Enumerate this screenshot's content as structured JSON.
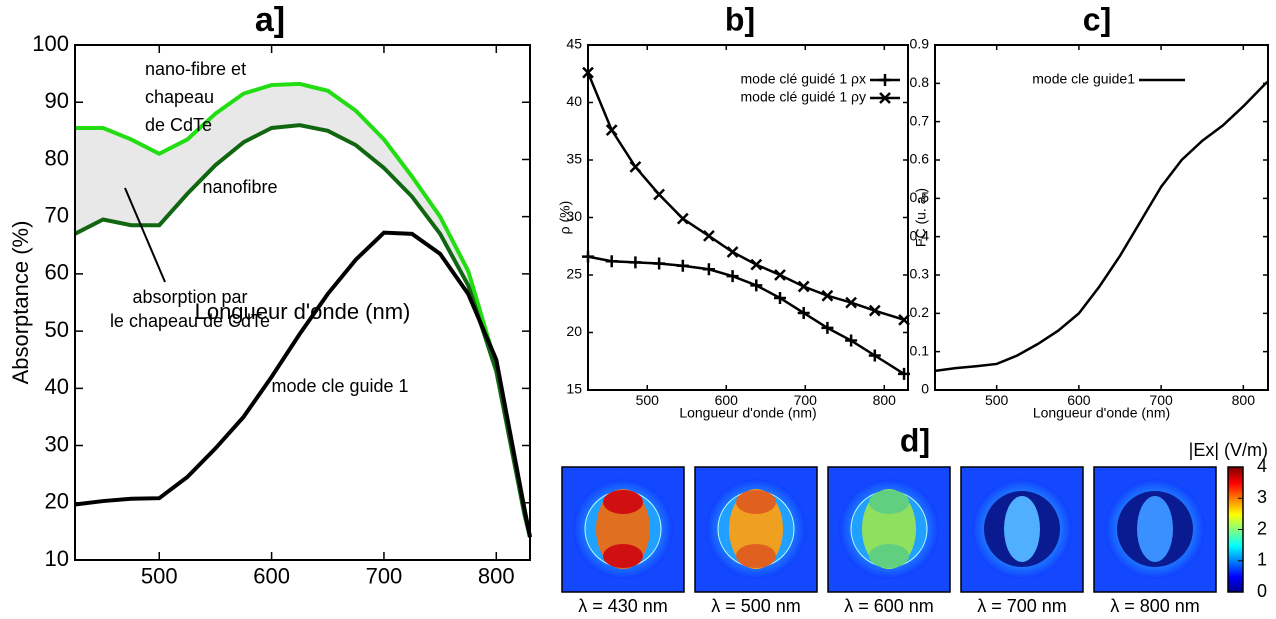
{
  "chart_data": [
    {
      "type": "line",
      "title": "a]",
      "xlabel": "Longueur d'onde (nm)",
      "ylabel": "Absorptance (%)",
      "xlim": [
        425,
        830
      ],
      "xticks": [
        500,
        600,
        700,
        800
      ],
      "ylim": [
        10,
        100
      ],
      "yticks": [
        10,
        20,
        30,
        40,
        50,
        60,
        70,
        80,
        90,
        100
      ],
      "x": [
        425,
        450,
        475,
        500,
        525,
        550,
        575,
        600,
        625,
        650,
        675,
        700,
        725,
        750,
        775,
        800,
        825,
        830
      ],
      "fill_between": [
        0,
        1
      ],
      "series": [
        {
          "color": "#22dd11",
          "values": [
            85.5,
            85.5,
            83.5,
            81,
            83.5,
            88,
            91.5,
            93,
            93.2,
            92,
            88.5,
            83.5,
            77,
            70,
            60.5,
            44,
            19,
            14
          ]
        },
        {
          "color": "#116611",
          "values": [
            67,
            69.5,
            68.5,
            68.5,
            74,
            79,
            83,
            85.5,
            86,
            85,
            82.5,
            78.5,
            73.5,
            67,
            58,
            43,
            18,
            14
          ]
        },
        {
          "color": "#000000",
          "values": [
            19.7,
            20.3,
            20.7,
            20.8,
            24.5,
            29.5,
            35,
            42,
            49.5,
            56.5,
            62.5,
            67.2,
            67,
            63.5,
            56.5,
            45,
            19,
            14
          ]
        }
      ],
      "annotations": [
        [
          "nano-fibre et",
          "chapeau",
          "de CdTe"
        ],
        [
          "nanofibre"
        ],
        [
          "absorption par",
          "le chapeau de CdTe"
        ],
        [
          "mode cle guide 1"
        ]
      ]
    },
    {
      "type": "line",
      "title": "b]",
      "xlabel": "Longueur d'onde (nm)",
      "ylabel": "ρ (%)",
      "xlim": [
        425,
        830
      ],
      "xticks": [
        500,
        600,
        700,
        800
      ],
      "ylim": [
        15,
        45
      ],
      "yticks": [
        15,
        20,
        25,
        30,
        35,
        40,
        45
      ],
      "x": [
        425,
        455,
        485,
        515,
        545,
        578,
        608,
        638,
        668,
        698,
        728,
        758,
        788,
        825
      ],
      "legend": "upper right",
      "series": [
        {
          "name": "mode clé guidé 1 ρx",
          "color": "#000000",
          "marker": "+",
          "values": [
            26.6,
            26.2,
            26.1,
            26.0,
            25.8,
            25.5,
            24.9,
            24.1,
            23.0,
            21.7,
            20.4,
            19.3,
            18.0,
            16.4
          ]
        },
        {
          "name": "mode clé guidé 1 ρy",
          "color": "#000000",
          "marker": "x",
          "values": [
            42.6,
            37.6,
            34.4,
            32.0,
            29.9,
            28.4,
            27.0,
            25.9,
            25.0,
            24.0,
            23.2,
            22.6,
            21.9,
            21.1
          ]
        }
      ]
    },
    {
      "type": "line",
      "title": "c]",
      "xlabel": "Longueur d'onde (nm)",
      "ylabel": "FC (u. a.)",
      "xlim": [
        425,
        830
      ],
      "xticks": [
        500,
        600,
        700,
        800
      ],
      "ylim": [
        0,
        0.9
      ],
      "yticks": [
        0,
        0.1,
        0.2,
        0.3,
        0.4,
        0.5,
        0.6,
        0.7,
        0.8,
        0.9
      ],
      "x": [
        425,
        450,
        475,
        500,
        525,
        550,
        575,
        600,
        625,
        650,
        675,
        700,
        725,
        750,
        775,
        800,
        825,
        830
      ],
      "legend": "upper left",
      "series": [
        {
          "name": "mode cle guide1",
          "color": "#000000",
          "values": [
            0.05,
            0.057,
            0.062,
            0.068,
            0.09,
            0.12,
            0.155,
            0.2,
            0.27,
            0.35,
            0.44,
            0.53,
            0.6,
            0.65,
            0.69,
            0.74,
            0.795,
            0.805
          ]
        }
      ]
    },
    {
      "type": "heatmap",
      "title": "d]",
      "images": [
        "λ = 430 nm",
        "λ = 500 nm",
        "λ = 600 nm",
        "λ = 700 nm",
        "λ = 800 nm"
      ],
      "colorbar_label": "|Ex| (V/m)",
      "clim": [
        0,
        4
      ],
      "cticks": [
        0,
        1,
        2,
        3,
        4
      ]
    }
  ]
}
